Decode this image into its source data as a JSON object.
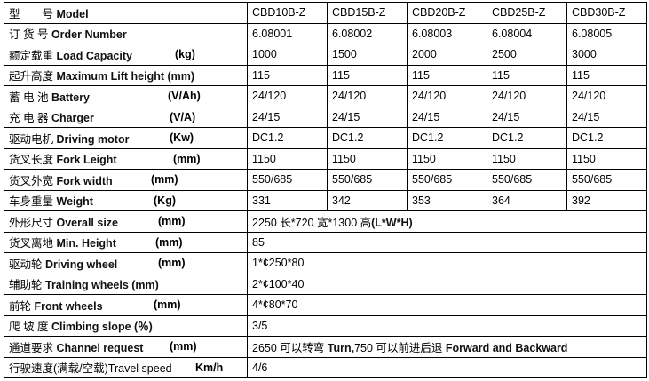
{
  "header": {
    "label_cn": "型　　号",
    "label_en": "Model",
    "models": [
      "CBD10B-Z",
      "CBD15B-Z",
      "CBD20B-Z",
      "CBD25B-Z",
      "CBD30B-Z"
    ]
  },
  "rows": [
    {
      "cn": "订 货 号",
      "en": "Order Number",
      "unit": "",
      "values": [
        "6.08001",
        "6.08002",
        "6.08003",
        "6.08004",
        "6.08005"
      ]
    },
    {
      "cn": "额定载重",
      "en": " Load Capacity",
      "unit": "(kg)",
      "values": [
        "1000",
        "1500",
        "2000",
        "2500",
        "3000"
      ]
    },
    {
      "cn": "起升高度",
      "en": "Maximum Lift height (mm)",
      "unit": "",
      "values": [
        "115",
        "115",
        "115",
        "115",
        "115"
      ]
    },
    {
      "cn": "蓄 电 池",
      "en": "Battery",
      "unit": "(V/Ah)",
      "values": [
        "24/120",
        "24/120",
        "24/120",
        "24/120",
        "24/120"
      ]
    },
    {
      "cn": "充 电 器",
      "en": "Charger",
      "unit": "(V/A)",
      "values": [
        "24/15",
        "24/15",
        "24/15",
        "24/15",
        "24/15"
      ]
    },
    {
      "cn": "驱动电机",
      "en": "Driving motor",
      "unit": "(Kw)",
      "values": [
        "DC1.2",
        "DC1.2",
        "DC1.2",
        "DC1.2",
        "DC1.2"
      ]
    },
    {
      "cn": "货叉长度",
      "en": "Fork Leight",
      "unit": "(mm)",
      "values": [
        "1150",
        "1150",
        "1150",
        "1150",
        "1150"
      ]
    },
    {
      "cn": "货叉外宽",
      "en": "Fork width",
      "unit": "(mm)",
      "values": [
        "550/685",
        "550/685",
        "550/685",
        "550/685",
        "550/685"
      ]
    },
    {
      "cn": "车身重量",
      "en": "Weight",
      "unit": "(Kg)",
      "values": [
        "331",
        "342",
        "353",
        "364",
        "392"
      ]
    }
  ],
  "wide_rows": [
    {
      "cn": "外形尺寸",
      "en": "Overall size",
      "unit": "(mm)",
      "value_plain": "2250 长*720 宽*1300 高",
      "value_bold": "(L*W*H)"
    },
    {
      "cn": "货叉离地",
      "en": "Min. Height",
      "unit": "(mm)",
      "value_plain": "85",
      "value_bold": ""
    },
    {
      "cn": "驱动轮 ",
      "en": " Driving wheel",
      "unit": "(mm)",
      "value_plain": "1*¢250*80",
      "value_bold": ""
    },
    {
      "cn": "辅助轮",
      "en": "Training wheels (mm)",
      "unit": "",
      "value_plain": "2*¢100*40",
      "value_bold": ""
    },
    {
      "cn": "前轮",
      "en": "Front wheels",
      "unit": "(mm)",
      "value_plain": "4*¢80*70",
      "value_bold": ""
    },
    {
      "cn": "爬 坡 度",
      "en": " Climbing slope (％)",
      "unit": "",
      "value_plain": "3/5",
      "value_bold": ""
    },
    {
      "cn": "通道要求",
      "en": " Channel request",
      "unit": "(mm)",
      "value_plain": "2650 可以转弯 ",
      "value_bold": "Turn,",
      "value_plain2": "750 可以前进后退 ",
      "value_bold2": "Forward and Backward"
    },
    {
      "cn": "行驶速度(满载/空载)Travel speed",
      "en": "",
      "unit": "Km/h",
      "value_plain": " 4/6",
      "value_bold": ""
    }
  ]
}
